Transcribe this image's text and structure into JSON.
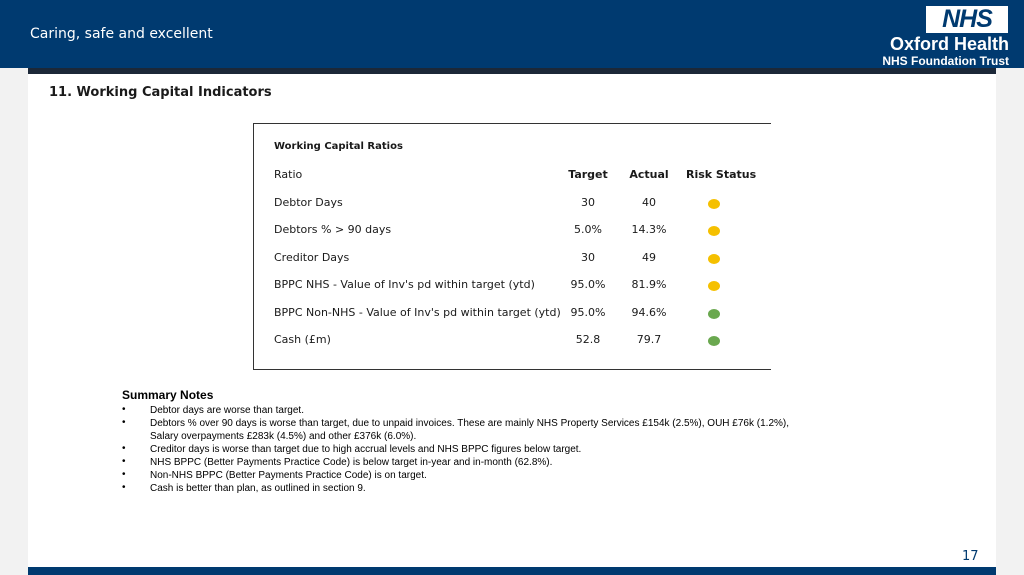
{
  "header": {
    "tagline": "Caring, safe and excellent",
    "logo_text": "NHS",
    "org_name": "Oxford Health",
    "org_sub": "NHS Foundation Trust"
  },
  "section_title": "11. Working Capital Indicators",
  "table": {
    "title": "Working Capital Ratios",
    "columns": [
      "Ratio",
      "Target",
      "Actual",
      "Risk Status"
    ],
    "rows": [
      {
        "ratio": "Debtor Days",
        "target": "30",
        "actual": "40",
        "status": "amber"
      },
      {
        "ratio": "Debtors % > 90 days",
        "target": "5.0%",
        "actual": "14.3%",
        "status": "amber"
      },
      {
        "ratio": "Creditor Days",
        "target": "30",
        "actual": "49",
        "status": "amber"
      },
      {
        "ratio": "BPPC NHS - Value of Inv's pd within target (ytd)",
        "target": "95.0%",
        "actual": "81.9%",
        "status": "amber"
      },
      {
        "ratio": "BPPC Non-NHS - Value of Inv's pd within target (ytd)",
        "target": "95.0%",
        "actual": "94.6%",
        "status": "green"
      },
      {
        "ratio": "Cash (£m)",
        "target": "52.8",
        "actual": "79.7",
        "status": "green"
      }
    ],
    "status_colors": {
      "amber": "#f5c000",
      "green": "#6aa84f"
    }
  },
  "summary": {
    "title": "Summary Notes",
    "bullet_symbol": "•",
    "notes": [
      [
        "Debtor days are worse than target."
      ],
      [
        "Debtors % over 90 days is worse than target, due to unpaid invoices. These are mainly NHS Property Services £154k (2.5%), OUH £76k (1.2%),",
        "Salary overpayments £283k (4.5%) and other £376k (6.0%)."
      ],
      [
        "Creditor days is worse than target due to high accrual levels and NHS BPPC figures below target."
      ],
      [
        "NHS BPPC (Better Payments Practice Code) is below target in-year and in-month (62.8%)."
      ],
      [
        "Non-NHS BPPC (Better Payments Practice Code) is on target."
      ],
      [
        "Cash is better than plan, as outlined in section 9."
      ]
    ]
  },
  "page_number": "17"
}
